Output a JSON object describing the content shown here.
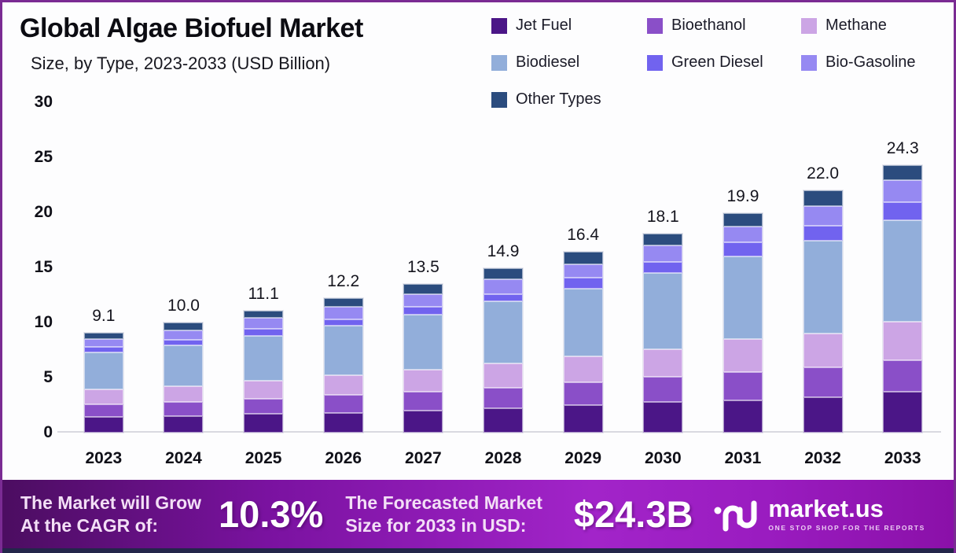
{
  "header": {
    "title": "Global Algae Biofuel Market",
    "subtitle": "Size, by Type, 2023-2033 (USD Billion)"
  },
  "chart_data": {
    "type": "bar",
    "stacked": true,
    "title": "Global Algae Biofuel Market Size, by Type, 2023-2033 (USD Billion)",
    "categories": [
      "2023",
      "2024",
      "2025",
      "2026",
      "2027",
      "2028",
      "2029",
      "2030",
      "2031",
      "2032",
      "2033"
    ],
    "totals": [
      "9.1",
      "10.0",
      "11.1",
      "12.2",
      "13.5",
      "14.9",
      "16.4",
      "18.1",
      "19.9",
      "22.0",
      "24.3"
    ],
    "series": [
      {
        "name": "Jet Fuel",
        "color": "#4B1687",
        "values": [
          1.4,
          1.5,
          1.7,
          1.8,
          2.0,
          2.2,
          2.5,
          2.8,
          2.9,
          3.2,
          3.7
        ]
      },
      {
        "name": "Bioethanol",
        "color": "#8A4FC8",
        "values": [
          1.2,
          1.3,
          1.4,
          1.6,
          1.7,
          1.9,
          2.1,
          2.3,
          2.6,
          2.7,
          2.9
        ]
      },
      {
        "name": "Methane",
        "color": "#CCA5E5",
        "values": [
          1.3,
          1.4,
          1.6,
          1.8,
          2.0,
          2.2,
          2.3,
          2.5,
          3.0,
          3.1,
          3.5
        ]
      },
      {
        "name": "Biodiesel",
        "color": "#92AEDA",
        "values": [
          3.4,
          3.7,
          4.1,
          4.5,
          5.0,
          5.6,
          6.2,
          6.9,
          7.5,
          8.4,
          9.2
        ]
      },
      {
        "name": "Green Diesel",
        "color": "#7163EF",
        "values": [
          0.5,
          0.5,
          0.6,
          0.6,
          0.7,
          0.7,
          1.0,
          1.0,
          1.3,
          1.4,
          1.6
        ]
      },
      {
        "name": "Bio-Gasoline",
        "color": "#9689F2",
        "values": [
          0.7,
          0.9,
          1.0,
          1.1,
          1.2,
          1.3,
          1.2,
          1.5,
          1.4,
          1.8,
          2.0
        ]
      },
      {
        "name": "Other Types",
        "color": "#2B4C7E",
        "values": [
          0.6,
          0.7,
          0.7,
          0.8,
          0.9,
          1.0,
          1.1,
          1.1,
          1.2,
          1.4,
          1.4
        ]
      }
    ],
    "ylim": [
      0,
      30
    ],
    "yticks": [
      0,
      5,
      10,
      15,
      20,
      25,
      30
    ],
    "legend_position": "top-right",
    "grid": false
  },
  "footer": {
    "cagr_label_line1": "The Market will Grow",
    "cagr_label_line2": "At the CAGR of:",
    "cagr_value": "10.3%",
    "forecast_label_line1": "The Forecasted Market",
    "forecast_label_line2": "Size for 2033 in USD:",
    "forecast_value": "$24.3B",
    "brand": {
      "name": "market.us",
      "tagline": "ONE STOP SHOP FOR THE REPORTS"
    }
  },
  "colors": {
    "frame_border": "#7a2b93",
    "footer_bottom_edge": "#23264a",
    "baseline": "#d9d9e0"
  }
}
